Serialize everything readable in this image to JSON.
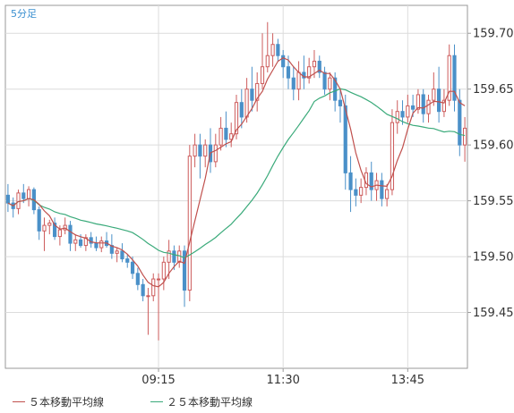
{
  "chart_data": {
    "type": "candlestick",
    "interval_label": "5分足",
    "x_ticks": [
      "09:15",
      "11:30",
      "13:45"
    ],
    "y_ticks": [
      "159.45",
      "159.50",
      "159.55",
      "159.60",
      "159.65",
      "159.70"
    ],
    "ylim": [
      159.4,
      159.725
    ],
    "grid": true,
    "legend_position": "bottom-left",
    "colors": {
      "up": "#cd5c5c",
      "down": "#4a90c8",
      "ma5": "#c0504d",
      "ma25": "#3aaa7a",
      "axis_text": "#333333",
      "interval_text": "#3a8fd0",
      "grid": "#dcdcdc"
    },
    "series": [
      {
        "name": "５本移動平均線",
        "color": "#c0504d"
      },
      {
        "name": "２５本移動平均線",
        "color": "#3aaa7a"
      }
    ],
    "ohlc": [
      [
        159.555,
        159.565,
        159.54,
        159.548
      ],
      [
        159.548,
        159.553,
        159.535,
        159.543
      ],
      [
        159.543,
        159.56,
        159.538,
        159.557
      ],
      [
        159.557,
        159.565,
        159.548,
        159.552
      ],
      [
        159.552,
        159.563,
        159.545,
        159.56
      ],
      [
        159.56,
        159.562,
        159.538,
        159.542
      ],
      [
        159.542,
        159.545,
        159.515,
        159.523
      ],
      [
        159.523,
        159.535,
        159.505,
        159.528
      ],
      [
        159.528,
        159.533,
        159.52,
        159.53
      ],
      [
        159.53,
        159.535,
        159.515,
        159.518
      ],
      [
        159.518,
        159.528,
        159.51,
        159.524
      ],
      [
        159.524,
        159.535,
        159.52,
        159.528
      ],
      [
        159.528,
        159.532,
        159.505,
        159.512
      ],
      [
        159.512,
        159.52,
        159.505,
        159.515
      ],
      [
        159.515,
        159.52,
        159.508,
        159.51
      ],
      [
        159.51,
        159.52,
        159.505,
        159.517
      ],
      [
        159.517,
        159.522,
        159.508,
        159.512
      ],
      [
        159.512,
        159.518,
        159.505,
        159.508
      ],
      [
        159.508,
        159.518,
        159.504,
        159.514
      ],
      [
        159.514,
        159.522,
        159.508,
        159.51
      ],
      [
        159.51,
        159.52,
        159.498,
        159.503
      ],
      [
        159.503,
        159.508,
        159.495,
        159.505
      ],
      [
        159.505,
        159.512,
        159.495,
        159.498
      ],
      [
        159.498,
        159.502,
        159.49,
        159.495
      ],
      [
        159.495,
        159.5,
        159.48,
        159.485
      ],
      [
        159.485,
        159.49,
        159.47,
        159.475
      ],
      [
        159.475,
        159.48,
        159.46,
        159.465
      ],
      [
        159.465,
        159.472,
        159.43,
        159.465
      ],
      [
        159.465,
        159.485,
        159.46,
        159.48
      ],
      [
        159.48,
        159.485,
        159.425,
        159.48
      ],
      [
        159.48,
        159.5,
        159.47,
        159.495
      ],
      [
        159.495,
        159.515,
        159.48,
        159.505
      ],
      [
        159.505,
        159.51,
        159.488,
        159.495
      ],
      [
        159.495,
        159.51,
        159.49,
        159.505
      ],
      [
        159.505,
        159.51,
        159.455,
        159.47
      ],
      [
        159.47,
        159.6,
        159.46,
        159.59
      ],
      [
        159.59,
        159.61,
        159.58,
        159.6
      ],
      [
        159.6,
        159.61,
        159.57,
        159.59
      ],
      [
        159.59,
        159.605,
        159.58,
        159.6
      ],
      [
        159.6,
        159.615,
        159.575,
        159.585
      ],
      [
        159.585,
        159.61,
        159.58,
        159.6
      ],
      [
        159.6,
        159.625,
        159.595,
        159.615
      ],
      [
        159.615,
        159.63,
        159.598,
        159.605
      ],
      [
        159.605,
        159.62,
        159.598,
        159.61
      ],
      [
        159.61,
        159.645,
        159.605,
        159.638
      ],
      [
        159.638,
        159.65,
        159.615,
        159.625
      ],
      [
        159.625,
        159.66,
        159.62,
        159.65
      ],
      [
        159.65,
        159.67,
        159.63,
        159.64
      ],
      [
        159.64,
        159.665,
        159.63,
        159.655
      ],
      [
        159.655,
        159.7,
        159.65,
        159.67
      ],
      [
        159.67,
        159.71,
        159.665,
        159.68
      ],
      [
        159.68,
        159.7,
        159.67,
        159.69
      ],
      [
        159.69,
        159.695,
        159.675,
        159.68
      ],
      [
        159.68,
        159.685,
        159.66,
        159.67
      ],
      [
        159.67,
        159.68,
        159.65,
        159.66
      ],
      [
        159.66,
        159.67,
        159.64,
        159.65
      ],
      [
        159.65,
        159.675,
        159.64,
        159.665
      ],
      [
        159.665,
        159.68,
        159.65,
        159.66
      ],
      [
        159.66,
        159.678,
        159.655,
        159.67
      ],
      [
        159.67,
        159.685,
        159.66,
        159.675
      ],
      [
        159.675,
        159.68,
        159.66,
        159.665
      ],
      [
        159.665,
        159.67,
        159.645,
        159.65
      ],
      [
        159.65,
        159.665,
        159.64,
        159.66
      ],
      [
        159.66,
        159.665,
        159.63,
        159.64
      ],
      [
        159.64,
        159.65,
        159.62,
        159.635
      ],
      [
        159.635,
        159.645,
        159.56,
        159.575
      ],
      [
        159.575,
        159.59,
        159.54,
        159.56
      ],
      [
        159.56,
        159.57,
        159.545,
        159.555
      ],
      [
        159.555,
        159.57,
        159.548,
        159.562
      ],
      [
        159.562,
        159.58,
        159.555,
        159.575
      ],
      [
        159.575,
        159.585,
        159.55,
        159.56
      ],
      [
        159.56,
        159.575,
        159.55,
        159.568
      ],
      [
        159.568,
        159.575,
        159.545,
        159.552
      ],
      [
        159.552,
        159.565,
        159.545,
        159.56
      ],
      [
        159.56,
        159.632,
        159.555,
        159.62
      ],
      [
        159.62,
        159.64,
        159.61,
        159.63
      ],
      [
        159.63,
        159.64,
        159.618,
        159.625
      ],
      [
        159.625,
        159.645,
        159.62,
        159.635
      ],
      [
        159.635,
        159.645,
        159.625,
        159.632
      ],
      [
        159.632,
        159.65,
        159.628,
        159.645
      ],
      [
        159.645,
        159.65,
        159.62,
        159.628
      ],
      [
        159.628,
        159.645,
        159.62,
        159.64
      ],
      [
        159.64,
        159.665,
        159.635,
        159.65
      ],
      [
        159.65,
        159.67,
        159.62,
        159.63
      ],
      [
        159.63,
        159.65,
        159.625,
        159.64
      ],
      [
        159.64,
        159.69,
        159.635,
        159.68
      ],
      [
        159.68,
        159.69,
        159.63,
        159.64
      ],
      [
        159.64,
        159.65,
        159.59,
        159.6
      ],
      [
        159.6,
        159.625,
        159.585,
        159.615
      ]
    ]
  }
}
